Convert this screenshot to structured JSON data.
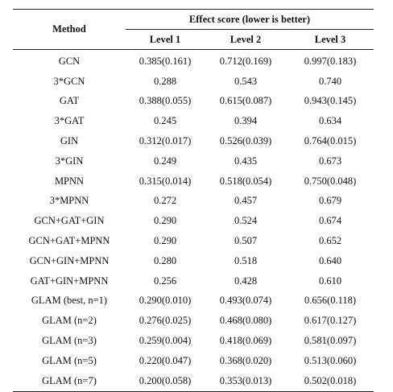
{
  "table": {
    "method_header": "Method",
    "group_header": "Effect score (lower is better)",
    "level_headers": [
      "Level 1",
      "Level 2",
      "Level 3"
    ],
    "rows": [
      {
        "method": "GCN",
        "l1": "0.385(0.161)",
        "l2": "0.712(0.169)",
        "l3": "0.997(0.183)"
      },
      {
        "method": "3*GCN",
        "l1": "0.288",
        "l2": "0.543",
        "l3": "0.740"
      },
      {
        "method": "GAT",
        "l1": "0.388(0.055)",
        "l2": "0.615(0.087)",
        "l3": "0.943(0.145)"
      },
      {
        "method": "3*GAT",
        "l1": "0.245",
        "l2": "0.394",
        "l3": "0.634"
      },
      {
        "method": "GIN",
        "l1": "0.312(0.017)",
        "l2": "0.526(0.039)",
        "l3": "0.764(0.015)"
      },
      {
        "method": "3*GIN",
        "l1": "0.249",
        "l2": "0.435",
        "l3": "0.673"
      },
      {
        "method": "MPNN",
        "l1": "0.315(0.014)",
        "l2": "0.518(0.054)",
        "l3": "0.750(0.048)"
      },
      {
        "method": "3*MPNN",
        "l1": "0.272",
        "l2": "0.457",
        "l3": "0.679"
      },
      {
        "method": "GCN+GAT+GIN",
        "l1": "0.290",
        "l2": "0.524",
        "l3": "0.674"
      },
      {
        "method": "GCN+GAT+MPNN",
        "l1": "0.290",
        "l2": "0.507",
        "l3": "0.652"
      },
      {
        "method": "GCN+GIN+MPNN",
        "l1": "0.280",
        "l2": "0.518",
        "l3": "0.640"
      },
      {
        "method": "GAT+GIN+MPNN",
        "l1": "0.256",
        "l2": "0.428",
        "l3": "0.610"
      },
      {
        "method": "GLAM (best, n=1)",
        "l1": "0.290(0.010)",
        "l2": "0.493(0.074)",
        "l3": "0.656(0.118)"
      },
      {
        "method": "GLAM (n=2)",
        "l1": "0.276(0.025)",
        "l2": "0.468(0.080)",
        "l3": "0.617(0.127)"
      },
      {
        "method": "GLAM (n=3)",
        "l1": "0.259(0.004)",
        "l2": "0.418(0.069)",
        "l3": "0.581(0.097)"
      },
      {
        "method": "GLAM (n=5)",
        "l1": "0.220(0.047)",
        "l2": "0.368(0.020)",
        "l3": "0.513(0.060)"
      },
      {
        "method": "GLAM (n=7)",
        "l1": "0.200(0.058)",
        "l2": "0.353(0.013)",
        "l3": "0.502(0.018)"
      }
    ]
  }
}
